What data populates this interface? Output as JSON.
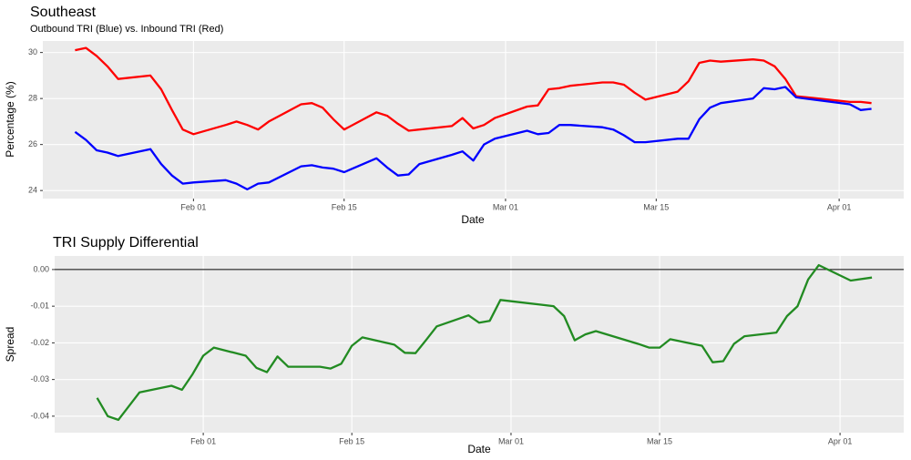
{
  "chart_data": [
    {
      "type": "line",
      "title": "Southeast",
      "subtitle": "Outbound TRI (Blue) vs. Inbound TRI (Red)",
      "x_label": "Date",
      "y_label": "Percentage (%)",
      "x": [
        "Jan 21",
        "Jan 22",
        "Jan 23",
        "Jan 24",
        "Jan 25",
        "Jan 28",
        "Jan 29",
        "Jan 30",
        "Jan 31",
        "Feb 01",
        "Feb 04",
        "Feb 05",
        "Feb 06",
        "Feb 07",
        "Feb 08",
        "Feb 11",
        "Feb 12",
        "Feb 13",
        "Feb 14",
        "Feb 15",
        "Feb 18",
        "Feb 19",
        "Feb 20",
        "Feb 21",
        "Feb 22",
        "Feb 25",
        "Feb 26",
        "Feb 27",
        "Feb 28",
        "Feb 29",
        "Mar 03",
        "Mar 04",
        "Mar 05",
        "Mar 06",
        "Mar 07",
        "Mar 10",
        "Mar 11",
        "Mar 12",
        "Mar 13",
        "Mar 14",
        "Mar 17",
        "Mar 18",
        "Mar 19",
        "Mar 20",
        "Mar 21",
        "Mar 24",
        "Mar 25",
        "Mar 26",
        "Mar 27",
        "Mar 28",
        "Apr 02",
        "Apr 03",
        "Apr 04"
      ],
      "series": [
        {
          "color": "#ff0000",
          "values": [
            30.1,
            30.2,
            29.85,
            29.4,
            28.85,
            29.0,
            28.4,
            27.5,
            26.65,
            26.45,
            26.85,
            27.0,
            26.85,
            26.65,
            27.0,
            27.75,
            27.8,
            27.6,
            27.1,
            26.65,
            27.4,
            27.25,
            26.9,
            26.6,
            26.65,
            26.8,
            27.15,
            26.7,
            26.85,
            27.15,
            27.65,
            27.7,
            28.4,
            28.45,
            28.55,
            28.7,
            28.7,
            28.6,
            28.25,
            27.95,
            28.3,
            28.75,
            29.55,
            29.65,
            29.6,
            29.7,
            29.65,
            29.4,
            28.85,
            28.1,
            27.85,
            27.85,
            27.8
          ]
        },
        {
          "color": "#0000ff",
          "values": [
            26.55,
            26.2,
            25.75,
            25.65,
            25.5,
            25.8,
            25.15,
            24.65,
            24.3,
            24.35,
            24.45,
            24.3,
            24.05,
            24.3,
            24.35,
            25.05,
            25.1,
            25.0,
            24.95,
            24.8,
            25.4,
            25.0,
            24.65,
            24.7,
            25.15,
            25.55,
            25.7,
            25.3,
            26.0,
            26.25,
            26.6,
            26.45,
            26.5,
            26.85,
            26.85,
            26.75,
            26.65,
            26.4,
            26.1,
            26.1,
            26.25,
            26.25,
            27.1,
            27.6,
            27.8,
            28.0,
            28.45,
            28.4,
            28.5,
            28.05,
            27.75,
            27.5,
            27.55
          ]
        }
      ],
      "xlim": [
        "Jan 18",
        "Apr 07"
      ],
      "xticks": [
        "Feb 01",
        "Feb 15",
        "Mar 01",
        "Mar 15",
        "Apr 01"
      ],
      "ylim": [
        23.65,
        30.5
      ],
      "yticks": [
        24,
        26,
        28,
        30
      ],
      "grid": true
    },
    {
      "type": "line",
      "title": "TRI Supply Differential",
      "x_label": "Date",
      "y_label": "Spread",
      "x": [
        "Jan 22",
        "Jan 23",
        "Jan 24",
        "Jan 26",
        "Jan 29",
        "Jan 30",
        "Jan 31",
        "Feb 01",
        "Feb 02",
        "Feb 05",
        "Feb 06",
        "Feb 07",
        "Feb 08",
        "Feb 09",
        "Feb 12",
        "Feb 13",
        "Feb 14",
        "Feb 15",
        "Feb 16",
        "Feb 19",
        "Feb 20",
        "Feb 21",
        "Feb 22",
        "Feb 23",
        "Feb 26",
        "Feb 27",
        "Feb 28",
        "Feb 29",
        "Mar 05",
        "Mar 06",
        "Mar 07",
        "Mar 08",
        "Mar 09",
        "Mar 13",
        "Mar 14",
        "Mar 15",
        "Mar 16",
        "Mar 19",
        "Mar 20",
        "Mar 21",
        "Mar 22",
        "Mar 23",
        "Mar 26",
        "Mar 27",
        "Mar 28",
        "Mar 29",
        "Mar 30",
        "Apr 02",
        "Apr 04"
      ],
      "series": [
        {
          "color": "#228b22",
          "values": [
            -0.035,
            -0.04,
            -0.041,
            -0.0335,
            -0.0317,
            -0.0328,
            -0.0285,
            -0.0235,
            -0.0213,
            -0.0235,
            -0.0268,
            -0.028,
            -0.0237,
            -0.0265,
            -0.0265,
            -0.027,
            -0.0257,
            -0.0208,
            -0.0185,
            -0.0205,
            -0.0227,
            -0.0228,
            -0.0192,
            -0.0155,
            -0.0125,
            -0.0145,
            -0.014,
            -0.0083,
            -0.01,
            -0.0127,
            -0.0193,
            -0.0177,
            -0.0168,
            -0.0203,
            -0.0213,
            -0.0213,
            -0.019,
            -0.0208,
            -0.0253,
            -0.025,
            -0.0203,
            -0.0182,
            -0.0172,
            -0.0127,
            -0.01,
            -0.0027,
            0.0012,
            -0.003,
            -0.0022
          ]
        }
      ],
      "hline": 0,
      "xlim": [
        "Jan 18",
        "Apr 07"
      ],
      "xticks": [
        "Feb 01",
        "Feb 15",
        "Mar 01",
        "Mar 15",
        "Apr 01"
      ],
      "ylim": [
        -0.0445,
        0.0037
      ],
      "yticks": [
        {
          "value": -0.04,
          "label": "-0.04"
        },
        {
          "value": -0.03,
          "label": "-0.03"
        },
        {
          "value": -0.02,
          "label": "-0.02"
        },
        {
          "value": -0.01,
          "label": "-0.01"
        },
        {
          "value": 0,
          "label": "0.00"
        }
      ],
      "grid": true
    }
  ]
}
